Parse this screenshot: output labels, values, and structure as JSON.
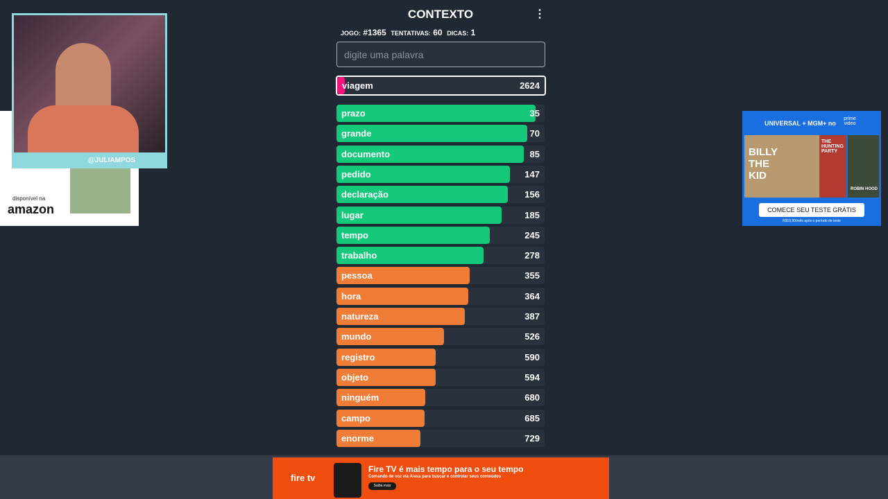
{
  "header": {
    "title": "CONTEXTO",
    "game_label": "JOGO:",
    "game": "#1365",
    "attempts_label": "TENTATIVAS:",
    "attempts": 60,
    "hints_label": "DICAS:",
    "hints": 1
  },
  "input": {
    "placeholder": "digite uma palavra"
  },
  "last_guess": {
    "word": "viagem",
    "rank": 2624,
    "color": "#f0147c"
  },
  "guesses": [
    {
      "word": "prazo",
      "rank": 35,
      "color": "#15c97a"
    },
    {
      "word": "grande",
      "rank": 70,
      "color": "#15c97a"
    },
    {
      "word": "documento",
      "rank": 85,
      "color": "#15c97a"
    },
    {
      "word": "pedido",
      "rank": 147,
      "color": "#15c97a"
    },
    {
      "word": "declaração",
      "rank": 156,
      "color": "#15c97a"
    },
    {
      "word": "lugar",
      "rank": 185,
      "color": "#15c97a"
    },
    {
      "word": "tempo",
      "rank": 245,
      "color": "#15c97a"
    },
    {
      "word": "trabalho",
      "rank": 278,
      "color": "#15c97a"
    },
    {
      "word": "pessoa",
      "rank": 355,
      "color": "#ef7d38"
    },
    {
      "word": "hora",
      "rank": 364,
      "color": "#ef7d38"
    },
    {
      "word": "natureza",
      "rank": 387,
      "color": "#ef7d38"
    },
    {
      "word": "mundo",
      "rank": 526,
      "color": "#ef7d38"
    },
    {
      "word": "registro",
      "rank": 590,
      "color": "#ef7d38"
    },
    {
      "word": "objeto",
      "rank": 594,
      "color": "#ef7d38"
    },
    {
      "word": "ninguém",
      "rank": 680,
      "color": "#ef7d38"
    },
    {
      "word": "campo",
      "rank": 685,
      "color": "#ef7d38"
    },
    {
      "word": "enorme",
      "rank": 729,
      "color": "#ef7d38"
    }
  ],
  "webcam": {
    "handle": "@JULIAMPOS"
  },
  "left_ad": {
    "available": "disponível na",
    "brand": "amazon"
  },
  "right_ad": {
    "brands": "UNIVERSAL + MGM+ no",
    "service": "prime video",
    "title1": "BILLY THE KID",
    "title2": "THE HUNTING PARTY",
    "title3": "ROBIN HOOD",
    "cta": "COMECE SEU TESTE GRÁTIS",
    "fine": "R$19,90/mês após o período de teste"
  },
  "bottom_ad": {
    "brand": "fire tv",
    "headline": "Fire TV é mais tempo para o seu tempo",
    "sub": "Comando de voz via Alexa para buscar e controlar seus conteúdos",
    "cta": "Saiba mais"
  }
}
